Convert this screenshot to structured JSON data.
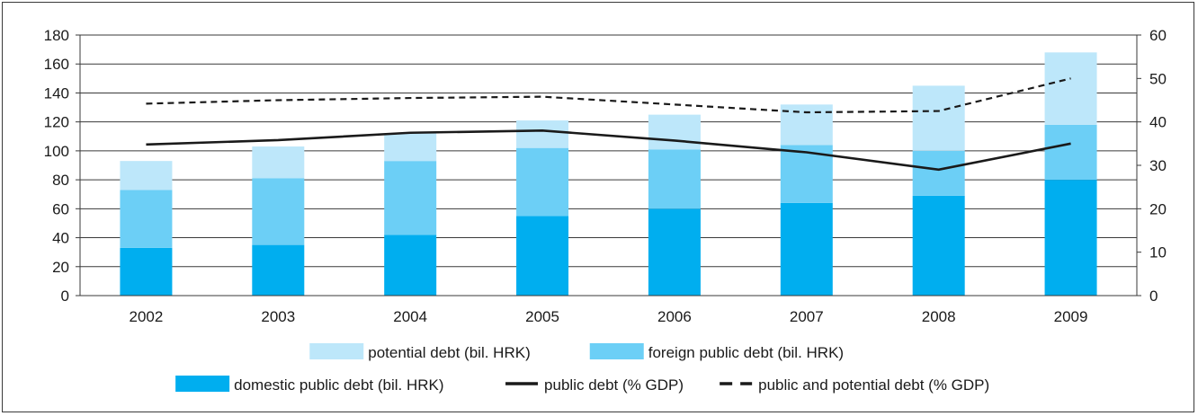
{
  "chart_data": {
    "type": "bar",
    "categories": [
      "2002",
      "2003",
      "2004",
      "2005",
      "2006",
      "2007",
      "2008",
      "2009"
    ],
    "series": [
      {
        "name": "domestic public debt (bil. HRK)",
        "kind": "bar",
        "axis": "left",
        "color": "#00aeef",
        "values": [
          33,
          35,
          42,
          55,
          60,
          64,
          69,
          80
        ]
      },
      {
        "name": "foreign public debt (bil. HRK)",
        "kind": "bar",
        "axis": "left",
        "color": "#6ccff6",
        "values": [
          40,
          46,
          51,
          47,
          41,
          40,
          31,
          38
        ]
      },
      {
        "name": "potential debt (bil. HRK)",
        "kind": "bar",
        "axis": "left",
        "color": "#bde7fa",
        "values": [
          20,
          22,
          19,
          19,
          24,
          28,
          45,
          50
        ]
      },
      {
        "name": "public debt (% GDP)",
        "kind": "line",
        "axis": "right",
        "color": "#1a1a1a",
        "dash": "solid",
        "values": [
          34.8,
          35.8,
          37.5,
          38.0,
          35.7,
          33.0,
          29.0,
          35.0
        ]
      },
      {
        "name": "public and potential debt (% GDP)",
        "kind": "line",
        "axis": "right",
        "color": "#1a1a1a",
        "dash": "dashed",
        "values": [
          44.2,
          45.0,
          45.5,
          45.8,
          44.0,
          42.2,
          42.5,
          50.0
        ]
      }
    ],
    "left_axis": {
      "min": 0,
      "max": 180,
      "step": 20,
      "ticks": [
        "0",
        "20",
        "40",
        "60",
        "80",
        "100",
        "120",
        "140",
        "160",
        "180"
      ]
    },
    "right_axis": {
      "min": 0,
      "max": 60,
      "step": 10,
      "ticks": [
        "0",
        "10",
        "20",
        "30",
        "40",
        "50",
        "60"
      ]
    },
    "grid": true,
    "legend_position": "bottom",
    "legend_rows": [
      [
        "potential debt (bil. HRK)",
        "foreign public debt (bil. HRK)"
      ],
      [
        "domestic public debt (bil. HRK)",
        "public debt (% GDP)",
        "public and potential debt (% GDP)"
      ]
    ]
  }
}
